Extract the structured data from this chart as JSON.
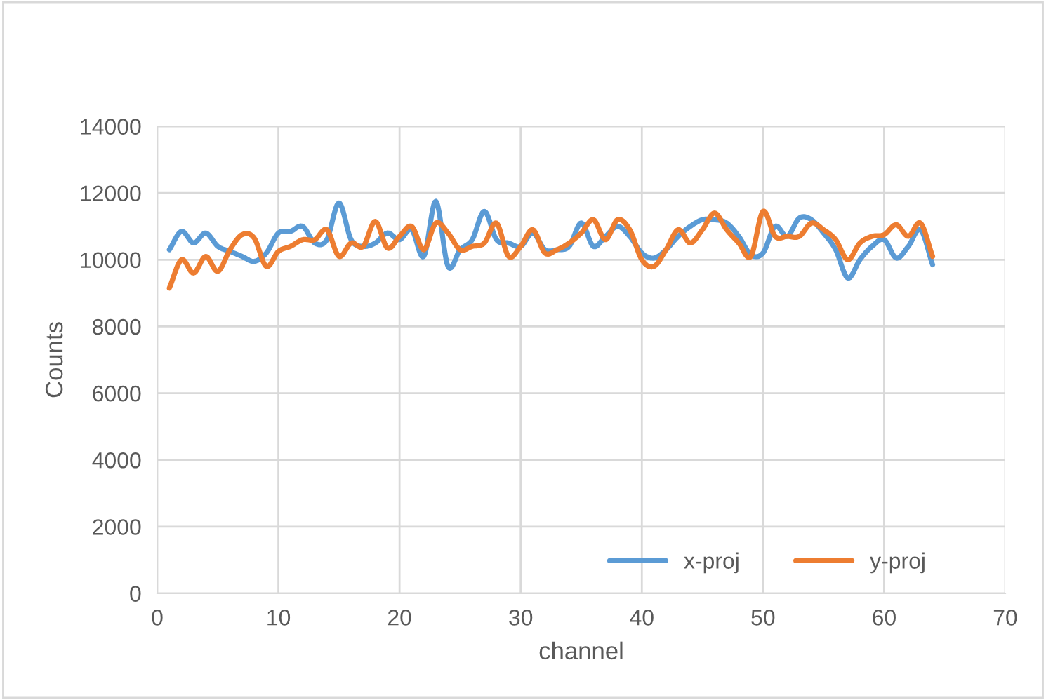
{
  "chart_data": {
    "type": "line",
    "xlabel": "channel",
    "ylabel": "Counts",
    "x": [
      1,
      2,
      3,
      4,
      5,
      6,
      7,
      8,
      9,
      10,
      11,
      12,
      13,
      14,
      15,
      16,
      17,
      18,
      19,
      20,
      21,
      22,
      23,
      24,
      25,
      26,
      27,
      28,
      29,
      30,
      31,
      32,
      33,
      34,
      35,
      36,
      37,
      38,
      39,
      40,
      41,
      42,
      43,
      44,
      45,
      46,
      47,
      48,
      49,
      50,
      51,
      52,
      53,
      54,
      55,
      56,
      57,
      58,
      59,
      60,
      61,
      62,
      63,
      64
    ],
    "series": [
      {
        "name": "x-proj",
        "color": "#5b9bd5",
        "values": [
          10300,
          10850,
          10500,
          10800,
          10400,
          10250,
          10100,
          9950,
          10200,
          10800,
          10850,
          11000,
          10500,
          10600,
          11700,
          10600,
          10400,
          10500,
          10800,
          10600,
          10900,
          10100,
          11750,
          9800,
          10300,
          10600,
          11450,
          10600,
          10500,
          10400,
          10800,
          10300,
          10300,
          10400,
          11100,
          10400,
          10700,
          11000,
          10700,
          10200,
          10050,
          10300,
          10700,
          11000,
          11200,
          11200,
          11100,
          10700,
          10150,
          10200,
          11000,
          10700,
          11250,
          11200,
          10800,
          10300,
          9450,
          10000,
          10400,
          10600,
          10050,
          10400,
          10900,
          9850
        ]
      },
      {
        "name": "y-proj",
        "color": "#ed7d31",
        "values": [
          9150,
          10000,
          9600,
          10100,
          9650,
          10300,
          10750,
          10650,
          9800,
          10250,
          10400,
          10600,
          10600,
          10900,
          10100,
          10500,
          10400,
          11150,
          10350,
          10700,
          11000,
          10300,
          11100,
          10800,
          10300,
          10400,
          10500,
          11100,
          10100,
          10400,
          10900,
          10200,
          10300,
          10500,
          10800,
          11200,
          10600,
          11200,
          10900,
          10000,
          9800,
          10300,
          10900,
          10500,
          10900,
          11400,
          10900,
          10500,
          10100,
          11450,
          10700,
          10700,
          10700,
          11100,
          10900,
          10600,
          10000,
          10500,
          10700,
          10750,
          11050,
          10700,
          11100,
          10100
        ]
      }
    ],
    "xlim": [
      0,
      70
    ],
    "xticks": [
      0,
      10,
      20,
      30,
      40,
      50,
      60,
      70
    ],
    "ylim": [
      0,
      14000
    ],
    "yticks": [
      0,
      2000,
      4000,
      6000,
      8000,
      10000,
      12000,
      14000
    ],
    "grid": true,
    "legend": "bottom",
    "marker": "none",
    "line_style": "solid"
  }
}
